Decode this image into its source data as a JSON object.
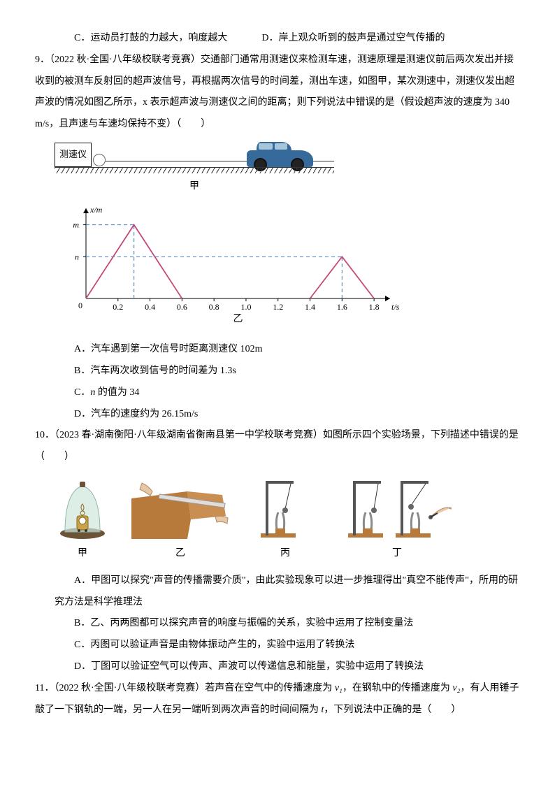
{
  "lineCD": {
    "c": "C．运动员打鼓的力越大，响度越大",
    "d": "D．岸上观众听到的鼓声是通过空气传播的"
  },
  "q9": {
    "header": "9．（2022 秋·全国·八年级校联考竞赛）交通部门通常用测速仪来检测车速，测速原理是测速仪前后两次发出并接收到的被测车反射回的超声波信号，再根据两次信号的时间差，测出车速，如图甲，某次测速中，测速仪发出超声波的情况如图乙所示，x 表示超声波与测速仪之间的距离；则下列说法中错误的是（假设超声波的速度为 340 m/s，且声速与车速均保持不变）（　　）",
    "device_label": "测速仪",
    "fig_jia_label": "甲",
    "fig_yi_label": "乙",
    "graph": {
      "xlim": [
        0,
        1.9
      ],
      "ylim": [
        0,
        70
      ],
      "xticks": [
        0,
        0.2,
        0.4,
        0.6,
        0.8,
        1.0,
        1.2,
        1.4,
        1.6,
        1.8
      ],
      "xticks_draw": [
        0.2,
        0.4,
        0.6,
        0.8,
        1.0,
        1.2,
        1.4,
        1.6,
        1.8
      ],
      "yticks": [
        {
          "v": 34,
          "label": "n"
        },
        {
          "v": 60,
          "label": "m"
        }
      ],
      "xlabel": "t/s",
      "ylabel": "x/m",
      "line_color": "#c54a7b",
      "guide_color": "#3a7ab8",
      "axis_color": "#000000",
      "tick_fontsize": 12,
      "series": [
        {
          "points": [
            [
              0,
              0
            ],
            [
              0.3,
              60
            ],
            [
              0.6,
              0
            ]
          ],
          "peak": {
            "t": 0.3,
            "x": 60
          }
        },
        {
          "points": [
            [
              1.4,
              0
            ],
            [
              1.6,
              34
            ],
            [
              1.8,
              0
            ]
          ],
          "peak": {
            "t": 1.6,
            "x": 34
          }
        }
      ]
    },
    "opts": {
      "a": "A．汽车遇到第一次信号时距离测速仪 102m",
      "b": "B．汽车两次收到信号的时间差为 1.3s",
      "c_prefix": "C．",
      "c_var": "n",
      "c_suffix": " 的值为 34",
      "d": "D．汽车的速度约为 26.15m/s"
    }
  },
  "q10": {
    "header": "10．（2023 春·湖南衡阳·八年级湖南省衡南县第一中学校联考竞赛）如图所示四个实验场景，下列描述中错误的是（　　）",
    "labels": {
      "a": "甲",
      "b": "乙",
      "c": "丙",
      "d": "丁"
    },
    "colors": {
      "bell_jar": "#cfe7dd",
      "base": "#6c5236",
      "ruler": "#d9d5cf",
      "desk": "#b77a3a",
      "stand": "#b77a3a",
      "fork": "#8a8a8a",
      "ball": "#666"
    },
    "opts": {
      "a": "A．甲图可以探究\"声音的传播需要介质\"，由此实验现象可以进一步推理得出\"真空不能传声\"，所用的研究方法是科学推理法",
      "b": "B．乙、丙两图都可以探究声音的响度与振幅的关系，实验中运用了控制变量法",
      "c": "C．丙图可以验证声音是由物体振动产生的，实验中运用了转换法",
      "d": "D．丁图可以验证空气可以传声、声波可以传递信息和能量，实验中运用了转换法"
    }
  },
  "q11": {
    "prefix": "11．（2022 秋·全国·八年级校联考竞赛）若声音在空气中的传播速度为 ",
    "v1": "v₁",
    "mid1": "，在钢轨中的传播速度为 ",
    "v2": "v₂",
    "mid2": "，有人用锤子敲了一下钢轨的一端，另一人在另一端听到两次声音的时间间隔为 ",
    "t": "t",
    "suffix": "，下列说法中正确的是（　　）"
  }
}
